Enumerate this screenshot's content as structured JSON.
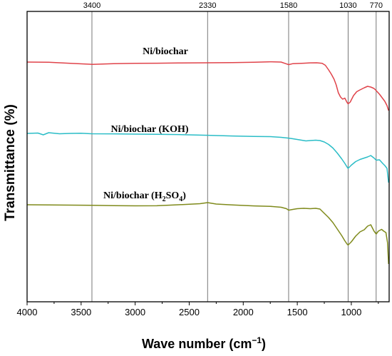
{
  "chart_data": {
    "type": "line",
    "title": "",
    "xlabel": "Wave number (cm",
    "xlabel_sup": "−1",
    "xlabel_tail": ")",
    "ylabel": "Transmittance (%)",
    "xlim": [
      4000,
      650
    ],
    "x_reversed": true,
    "xticks": [
      4000,
      3500,
      3000,
      2500,
      2000,
      1500,
      1000
    ],
    "y_ticks_shown": false,
    "reference_lines": [
      3400,
      2330,
      1580,
      1030,
      770
    ],
    "series": [
      {
        "name": "Ni/biochar",
        "color": "#e0434a",
        "label": {
          "main": "Ni/biochar",
          "sub": "",
          "mid": "",
          "sub2": "",
          "tail": ""
        },
        "points": [
          [
            4000,
            87.0
          ],
          [
            3800,
            87.2
          ],
          [
            3600,
            88.8
          ],
          [
            3400,
            90.2
          ],
          [
            3200,
            89.3
          ],
          [
            3000,
            88.8
          ],
          [
            2800,
            88.6
          ],
          [
            2600,
            88.3
          ],
          [
            2330,
            88.0
          ],
          [
            2100,
            87.7
          ],
          [
            1900,
            87.2
          ],
          [
            1750,
            86.6
          ],
          [
            1650,
            87.0
          ],
          [
            1600,
            89.6
          ],
          [
            1580,
            90.6
          ],
          [
            1540,
            89.2
          ],
          [
            1500,
            89.0
          ],
          [
            1440,
            88.6
          ],
          [
            1380,
            88.1
          ],
          [
            1320,
            88.0
          ],
          [
            1270,
            88.7
          ],
          [
            1240,
            91.5
          ],
          [
            1210,
            98.0
          ],
          [
            1185,
            104.0
          ],
          [
            1160,
            111.0
          ],
          [
            1140,
            119.0
          ],
          [
            1120,
            130.0
          ],
          [
            1100,
            136.0
          ],
          [
            1080,
            139.0
          ],
          [
            1060,
            137.5
          ],
          [
            1040,
            143.5
          ],
          [
            1030,
            145.5
          ],
          [
            1010,
            143.0
          ],
          [
            980,
            134.0
          ],
          [
            950,
            128.5
          ],
          [
            920,
            126.0
          ],
          [
            880,
            123.0
          ],
          [
            850,
            121.0
          ],
          [
            820,
            122.0
          ],
          [
            790,
            124.0
          ],
          [
            770,
            127.0
          ],
          [
            740,
            132.0
          ],
          [
            710,
            138.0
          ],
          [
            690,
            142.0
          ],
          [
            670,
            148.0
          ],
          [
            655,
            155.0
          ]
        ]
      },
      {
        "name": "Ni/biochar (KOH)",
        "color": "#2bbdc7",
        "label": {
          "main": "Ni/biochar (KOH)",
          "sub": "",
          "mid": "",
          "sub2": "",
          "tail": ""
        },
        "points": [
          [
            4000,
            187.0
          ],
          [
            3900,
            186.5
          ],
          [
            3850,
            189.0
          ],
          [
            3800,
            186.0
          ],
          [
            3700,
            187.5
          ],
          [
            3600,
            187.0
          ],
          [
            3500,
            186.8
          ],
          [
            3400,
            187.5
          ],
          [
            3200,
            187.6
          ],
          [
            3000,
            188.0
          ],
          [
            2800,
            188.3
          ],
          [
            2600,
            188.6
          ],
          [
            2330,
            189.6
          ],
          [
            2100,
            190.6
          ],
          [
            1900,
            191.3
          ],
          [
            1750,
            191.5
          ],
          [
            1650,
            192.5
          ],
          [
            1580,
            193.6
          ],
          [
            1540,
            194.5
          ],
          [
            1480,
            196.0
          ],
          [
            1420,
            197.5
          ],
          [
            1380,
            197.0
          ],
          [
            1330,
            196.5
          ],
          [
            1290,
            197.0
          ],
          [
            1250,
            199.0
          ],
          [
            1210,
            202.5
          ],
          [
            1170,
            207.5
          ],
          [
            1130,
            214.5
          ],
          [
            1090,
            222.5
          ],
          [
            1060,
            229.0
          ],
          [
            1040,
            234.0
          ],
          [
            1030,
            236.0
          ],
          [
            1000,
            231.5
          ],
          [
            960,
            226.5
          ],
          [
            920,
            223.5
          ],
          [
            880,
            221.5
          ],
          [
            850,
            220.0
          ],
          [
            820,
            218.0
          ],
          [
            790,
            221.5
          ],
          [
            770,
            224.5
          ],
          [
            740,
            224.0
          ],
          [
            710,
            229.0
          ],
          [
            690,
            232.0
          ],
          [
            670,
            236.0
          ],
          [
            655,
            256.0
          ]
        ]
      },
      {
        "name": "Ni/biochar (H2SO4)",
        "color": "#7f8a1b",
        "label": {
          "main": "Ni/biochar (H",
          "sub": "2",
          "mid": "SO",
          "sub2": "4",
          "tail": ")"
        },
        "points": [
          [
            4000,
            287.0
          ],
          [
            3800,
            287.3
          ],
          [
            3600,
            287.5
          ],
          [
            3400,
            287.8
          ],
          [
            3200,
            288.3
          ],
          [
            3000,
            288.5
          ],
          [
            2800,
            288.4
          ],
          [
            2600,
            287.0
          ],
          [
            2400,
            285.5
          ],
          [
            2330,
            284.0
          ],
          [
            2250,
            286.0
          ],
          [
            2100,
            287.2
          ],
          [
            1900,
            288.6
          ],
          [
            1750,
            289.2
          ],
          [
            1650,
            290.5
          ],
          [
            1600,
            292.5
          ],
          [
            1580,
            294.6
          ],
          [
            1540,
            293.5
          ],
          [
            1500,
            292.5
          ],
          [
            1440,
            292.0
          ],
          [
            1380,
            292.5
          ],
          [
            1330,
            292.0
          ],
          [
            1290,
            293.0
          ],
          [
            1250,
            299.0
          ],
          [
            1210,
            305.0
          ],
          [
            1170,
            312.0
          ],
          [
            1130,
            321.0
          ],
          [
            1090,
            330.0
          ],
          [
            1060,
            337.5
          ],
          [
            1040,
            342.0
          ],
          [
            1030,
            343.5
          ],
          [
            1000,
            339.0
          ],
          [
            960,
            331.0
          ],
          [
            920,
            325.0
          ],
          [
            880,
            322.0
          ],
          [
            850,
            317.0
          ],
          [
            820,
            315.0
          ],
          [
            790,
            324.0
          ],
          [
            770,
            328.0
          ],
          [
            750,
            324.0
          ],
          [
            720,
            321.5
          ],
          [
            700,
            324.0
          ],
          [
            680,
            326.0
          ],
          [
            665,
            340.0
          ],
          [
            655,
            370.0
          ]
        ]
      }
    ]
  }
}
